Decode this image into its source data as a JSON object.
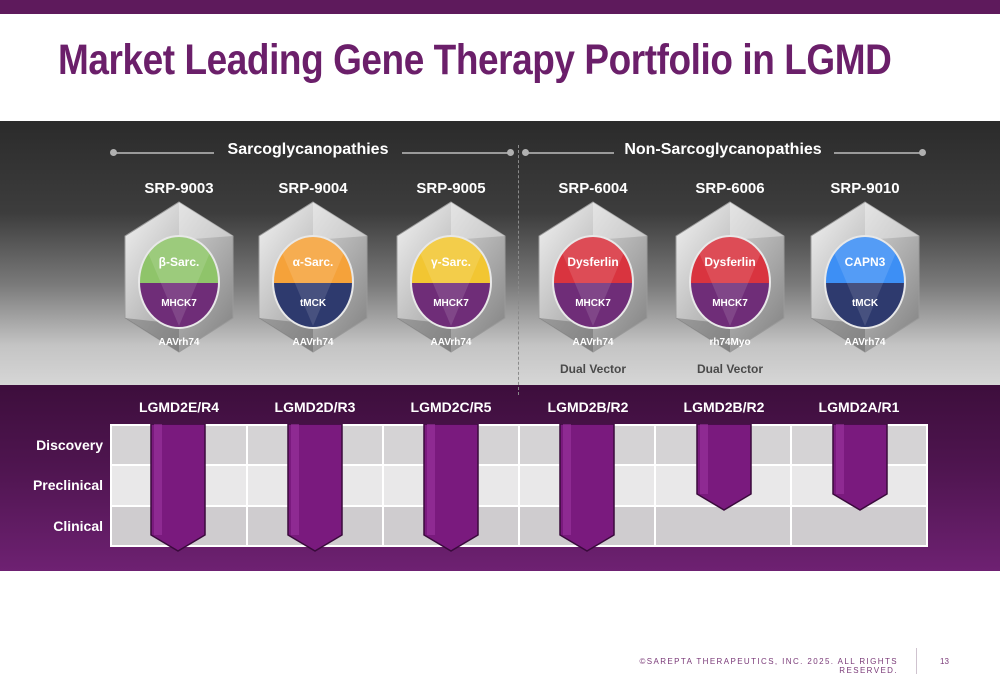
{
  "title": "Market Leading Gene Therapy Portfolio in LGMD",
  "groups": [
    {
      "label": "Sarcoglycanopathies"
    },
    {
      "label": "Non-Sarcoglycanopathies"
    }
  ],
  "programs": [
    {
      "code": "SRP-9003",
      "transgene": "β-Sarc.",
      "promoter": "MHCK7",
      "capsid": "AAVrh74",
      "note": "",
      "indication": "LGMD2E/R4",
      "top_color": "#8fc46a",
      "bottom_color": "#6f2d78",
      "stage": "Clinical"
    },
    {
      "code": "SRP-9004",
      "transgene": "α-Sarc.",
      "promoter": "tMCK",
      "capsid": "AAVrh74",
      "note": "",
      "indication": "LGMD2D/R3",
      "top_color": "#f5a23a",
      "bottom_color": "#2e3a6e",
      "stage": "Clinical"
    },
    {
      "code": "SRP-9005",
      "transgene": "γ-Sarc.",
      "promoter": "MHCK7",
      "capsid": "AAVrh74",
      "note": "",
      "indication": "LGMD2C/R5",
      "top_color": "#f2c632",
      "bottom_color": "#6f2d78",
      "stage": "Clinical"
    },
    {
      "code": "SRP-6004",
      "transgene": "Dysferlin",
      "promoter": "MHCK7",
      "capsid": "AAVrh74",
      "note": "Dual Vector",
      "indication": "LGMD2B/R2",
      "top_color": "#d9343f",
      "bottom_color": "#6f2d78",
      "stage": "Clinical"
    },
    {
      "code": "SRP-6006",
      "transgene": "Dysferlin",
      "promoter": "MHCK7",
      "capsid": "rh74Myo",
      "note": "Dual Vector",
      "indication": "LGMD2B/R2",
      "top_color": "#d9343f",
      "bottom_color": "#6f2d78",
      "stage": "Preclinical"
    },
    {
      "code": "SRP-9010",
      "transgene": "CAPN3",
      "promoter": "tMCK",
      "capsid": "AAVrh74",
      "note": "",
      "indication": "LGMD2A/R1",
      "top_color": "#3d8ff5",
      "bottom_color": "#2e3a6e",
      "stage": "Preclinical"
    }
  ],
  "stages": [
    "Discovery",
    "Preclinical",
    "Clinical"
  ],
  "colors": {
    "brand_purple": "#6b1f6a",
    "arrow_purple": "#7a1a7e"
  },
  "footer": {
    "copyright": "©SAREPTA THERAPEUTICS, INC. 2025.  ALL RIGHTS RESERVED.",
    "page": "13"
  }
}
